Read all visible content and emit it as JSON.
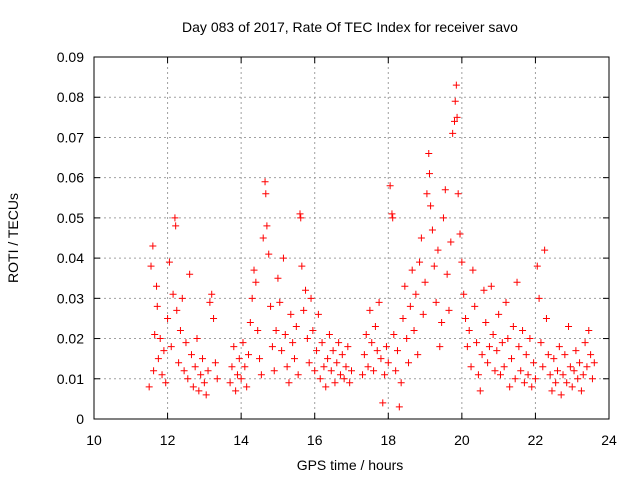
{
  "chart_data": {
    "type": "scatter",
    "title": "Day 083 of 2017, Rate Of TEC Index for receiver savo",
    "xlabel": "GPS time / hours",
    "ylabel": "ROTI / TECUs",
    "xlim": [
      10,
      24
    ],
    "ylim": [
      0,
      0.09
    ],
    "x_ticks": [
      10,
      12,
      14,
      16,
      18,
      20,
      22,
      24
    ],
    "x_tick_labels": [
      "10",
      "12",
      "14",
      "16",
      "18",
      "20",
      "22",
      "24"
    ],
    "y_ticks": [
      0,
      0.01,
      0.02,
      0.03,
      0.04,
      0.05,
      0.06,
      0.07,
      0.08,
      0.09
    ],
    "y_tick_labels": [
      "0",
      "0.01",
      "0.02",
      "0.03",
      "0.04",
      "0.05",
      "0.06",
      "0.07",
      "0.08",
      "0.09"
    ],
    "grid": true,
    "marker": "+",
    "color": "#ff0000",
    "series": [
      {
        "name": "ROTI",
        "points": [
          [
            11.5,
            0.008
          ],
          [
            11.55,
            0.038
          ],
          [
            11.6,
            0.043
          ],
          [
            11.62,
            0.012
          ],
          [
            11.65,
            0.021
          ],
          [
            11.7,
            0.033
          ],
          [
            11.72,
            0.028
          ],
          [
            11.75,
            0.015
          ],
          [
            11.8,
            0.02
          ],
          [
            11.85,
            0.011
          ],
          [
            11.9,
            0.017
          ],
          [
            11.95,
            0.009
          ],
          [
            12.0,
            0.025
          ],
          [
            12.05,
            0.039
          ],
          [
            12.1,
            0.018
          ],
          [
            12.15,
            0.031
          ],
          [
            12.2,
            0.05
          ],
          [
            12.22,
            0.048
          ],
          [
            12.25,
            0.027
          ],
          [
            12.3,
            0.014
          ],
          [
            12.35,
            0.022
          ],
          [
            12.4,
            0.03
          ],
          [
            12.45,
            0.012
          ],
          [
            12.5,
            0.019
          ],
          [
            12.55,
            0.01
          ],
          [
            12.6,
            0.036
          ],
          [
            12.65,
            0.016
          ],
          [
            12.7,
            0.008
          ],
          [
            12.75,
            0.013
          ],
          [
            12.8,
            0.02
          ],
          [
            12.85,
            0.007
          ],
          [
            12.9,
            0.011
          ],
          [
            12.95,
            0.015
          ],
          [
            13.0,
            0.009
          ],
          [
            13.05,
            0.006
          ],
          [
            13.1,
            0.012
          ],
          [
            13.15,
            0.029
          ],
          [
            13.2,
            0.031
          ],
          [
            13.25,
            0.025
          ],
          [
            13.3,
            0.014
          ],
          [
            13.35,
            0.01
          ],
          [
            13.7,
            0.009
          ],
          [
            13.75,
            0.013
          ],
          [
            13.8,
            0.018
          ],
          [
            13.85,
            0.007
          ],
          [
            13.9,
            0.011
          ],
          [
            13.95,
            0.015
          ],
          [
            14.0,
            0.01
          ],
          [
            14.05,
            0.019
          ],
          [
            14.1,
            0.013
          ],
          [
            14.15,
            0.008
          ],
          [
            14.2,
            0.016
          ],
          [
            14.25,
            0.024
          ],
          [
            14.3,
            0.03
          ],
          [
            14.35,
            0.037
          ],
          [
            14.4,
            0.034
          ],
          [
            14.45,
            0.022
          ],
          [
            14.5,
            0.015
          ],
          [
            14.55,
            0.011
          ],
          [
            14.6,
            0.045
          ],
          [
            14.65,
            0.059
          ],
          [
            14.67,
            0.056
          ],
          [
            14.7,
            0.048
          ],
          [
            14.75,
            0.041
          ],
          [
            14.8,
            0.028
          ],
          [
            14.85,
            0.018
          ],
          [
            14.9,
            0.012
          ],
          [
            14.95,
            0.022
          ],
          [
            15.0,
            0.035
          ],
          [
            15.05,
            0.029
          ],
          [
            15.1,
            0.017
          ],
          [
            15.15,
            0.04
          ],
          [
            15.2,
            0.021
          ],
          [
            15.25,
            0.013
          ],
          [
            15.3,
            0.009
          ],
          [
            15.35,
            0.026
          ],
          [
            15.4,
            0.019
          ],
          [
            15.45,
            0.015
          ],
          [
            15.5,
            0.023
          ],
          [
            15.55,
            0.011
          ],
          [
            15.6,
            0.051
          ],
          [
            15.62,
            0.05
          ],
          [
            15.65,
            0.038
          ],
          [
            15.7,
            0.027
          ],
          [
            15.75,
            0.032
          ],
          [
            15.8,
            0.02
          ],
          [
            15.85,
            0.014
          ],
          [
            15.9,
            0.03
          ],
          [
            15.95,
            0.022
          ],
          [
            16.0,
            0.012
          ],
          [
            16.05,
            0.017
          ],
          [
            16.1,
            0.026
          ],
          [
            16.15,
            0.01
          ],
          [
            16.2,
            0.019
          ],
          [
            16.25,
            0.013
          ],
          [
            16.3,
            0.008
          ],
          [
            16.35,
            0.015
          ],
          [
            16.4,
            0.021
          ],
          [
            16.45,
            0.012
          ],
          [
            16.5,
            0.017
          ],
          [
            16.55,
            0.009
          ],
          [
            16.6,
            0.014
          ],
          [
            16.65,
            0.019
          ],
          [
            16.7,
            0.011
          ],
          [
            16.75,
            0.016
          ],
          [
            16.8,
            0.01
          ],
          [
            16.85,
            0.013
          ],
          [
            16.9,
            0.018
          ],
          [
            16.95,
            0.009
          ],
          [
            17.0,
            0.012
          ],
          [
            17.3,
            0.011
          ],
          [
            17.35,
            0.016
          ],
          [
            17.4,
            0.021
          ],
          [
            17.45,
            0.013
          ],
          [
            17.5,
            0.027
          ],
          [
            17.55,
            0.019
          ],
          [
            17.6,
            0.012
          ],
          [
            17.65,
            0.023
          ],
          [
            17.7,
            0.017
          ],
          [
            17.75,
            0.029
          ],
          [
            17.8,
            0.015
          ],
          [
            17.85,
            0.004
          ],
          [
            17.9,
            0.011
          ],
          [
            17.95,
            0.018
          ],
          [
            18.0,
            0.014
          ],
          [
            18.05,
            0.058
          ],
          [
            18.1,
            0.051
          ],
          [
            18.12,
            0.05
          ],
          [
            18.15,
            0.021
          ],
          [
            18.2,
            0.012
          ],
          [
            18.25,
            0.017
          ],
          [
            18.3,
            0.003
          ],
          [
            18.35,
            0.009
          ],
          [
            18.4,
            0.025
          ],
          [
            18.45,
            0.033
          ],
          [
            18.5,
            0.02
          ],
          [
            18.55,
            0.014
          ],
          [
            18.6,
            0.028
          ],
          [
            18.65,
            0.037
          ],
          [
            18.7,
            0.022
          ],
          [
            18.75,
            0.031
          ],
          [
            18.8,
            0.016
          ],
          [
            18.85,
            0.039
          ],
          [
            18.9,
            0.045
          ],
          [
            18.95,
            0.026
          ],
          [
            19.0,
            0.034
          ],
          [
            19.05,
            0.056
          ],
          [
            19.1,
            0.066
          ],
          [
            19.12,
            0.061
          ],
          [
            19.15,
            0.053
          ],
          [
            19.2,
            0.047
          ],
          [
            19.25,
            0.038
          ],
          [
            19.3,
            0.029
          ],
          [
            19.35,
            0.042
          ],
          [
            19.4,
            0.018
          ],
          [
            19.45,
            0.024
          ],
          [
            19.5,
            0.05
          ],
          [
            19.55,
            0.057
          ],
          [
            19.6,
            0.036
          ],
          [
            19.65,
            0.027
          ],
          [
            19.7,
            0.044
          ],
          [
            19.75,
            0.071
          ],
          [
            19.8,
            0.074
          ],
          [
            19.82,
            0.079
          ],
          [
            19.85,
            0.083
          ],
          [
            19.87,
            0.075
          ],
          [
            19.9,
            0.056
          ],
          [
            19.95,
            0.046
          ],
          [
            20.0,
            0.039
          ],
          [
            20.05,
            0.031
          ],
          [
            20.1,
            0.025
          ],
          [
            20.15,
            0.018
          ],
          [
            20.2,
            0.022
          ],
          [
            20.25,
            0.013
          ],
          [
            20.3,
            0.037
          ],
          [
            20.35,
            0.028
          ],
          [
            20.4,
            0.019
          ],
          [
            20.45,
            0.011
          ],
          [
            20.5,
            0.007
          ],
          [
            20.55,
            0.016
          ],
          [
            20.6,
            0.032
          ],
          [
            20.65,
            0.024
          ],
          [
            20.7,
            0.014
          ],
          [
            20.75,
            0.018
          ],
          [
            20.8,
            0.033
          ],
          [
            20.85,
            0.021
          ],
          [
            20.9,
            0.012
          ],
          [
            20.95,
            0.017
          ],
          [
            21.0,
            0.026
          ],
          [
            21.05,
            0.011
          ],
          [
            21.1,
            0.019
          ],
          [
            21.15,
            0.013
          ],
          [
            21.2,
            0.029
          ],
          [
            21.25,
            0.02
          ],
          [
            21.3,
            0.008
          ],
          [
            21.35,
            0.015
          ],
          [
            21.4,
            0.023
          ],
          [
            21.45,
            0.01
          ],
          [
            21.5,
            0.034
          ],
          [
            21.55,
            0.018
          ],
          [
            21.6,
            0.012
          ],
          [
            21.65,
            0.022
          ],
          [
            21.7,
            0.009
          ],
          [
            21.75,
            0.016
          ],
          [
            21.8,
            0.011
          ],
          [
            21.85,
            0.02
          ],
          [
            21.9,
            0.008
          ],
          [
            21.95,
            0.014
          ],
          [
            22.0,
            0.01
          ],
          [
            22.05,
            0.038
          ],
          [
            22.1,
            0.03
          ],
          [
            22.15,
            0.019
          ],
          [
            22.2,
            0.013
          ],
          [
            22.25,
            0.042
          ],
          [
            22.3,
            0.025
          ],
          [
            22.35,
            0.016
          ],
          [
            22.4,
            0.011
          ],
          [
            22.45,
            0.007
          ],
          [
            22.5,
            0.015
          ],
          [
            22.55,
            0.009
          ],
          [
            22.6,
            0.012
          ],
          [
            22.65,
            0.018
          ],
          [
            22.7,
            0.006
          ],
          [
            22.75,
            0.011
          ],
          [
            22.8,
            0.016
          ],
          [
            22.85,
            0.009
          ],
          [
            22.9,
            0.023
          ],
          [
            22.95,
            0.013
          ],
          [
            23.0,
            0.008
          ],
          [
            23.05,
            0.012
          ],
          [
            23.1,
            0.017
          ],
          [
            23.15,
            0.01
          ],
          [
            23.2,
            0.014
          ],
          [
            23.25,
            0.007
          ],
          [
            23.3,
            0.011
          ],
          [
            23.35,
            0.019
          ],
          [
            23.4,
            0.013
          ],
          [
            23.45,
            0.022
          ],
          [
            23.5,
            0.016
          ],
          [
            23.55,
            0.01
          ],
          [
            23.6,
            0.014
          ]
        ]
      }
    ]
  }
}
